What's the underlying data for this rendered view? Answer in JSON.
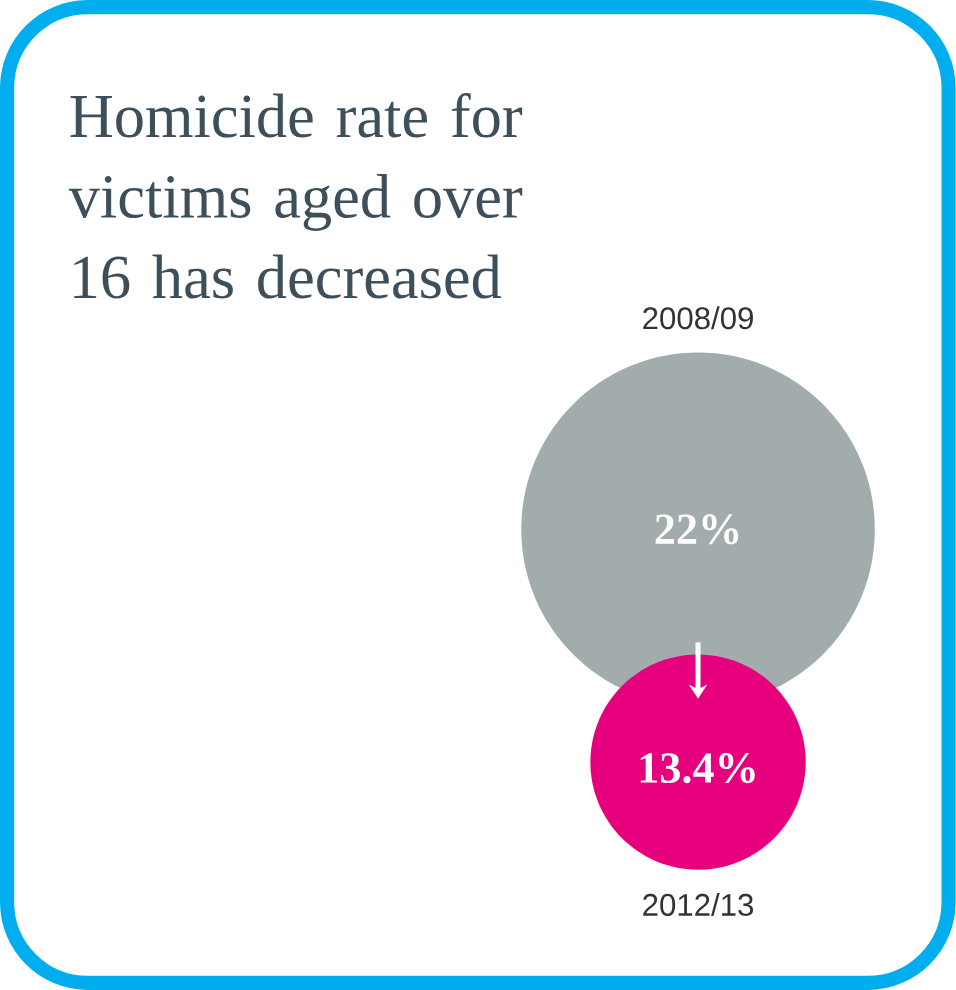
{
  "chart_data": {
    "type": "other",
    "title": "Homicide rate for victims aged over 16 has decreased",
    "categories": [
      "2008/09",
      "2012/13"
    ],
    "values": [
      22,
      13.4
    ],
    "colors": [
      "#a2acad",
      "#e6007e"
    ],
    "value_labels": [
      "22%",
      "13.4%"
    ]
  }
}
